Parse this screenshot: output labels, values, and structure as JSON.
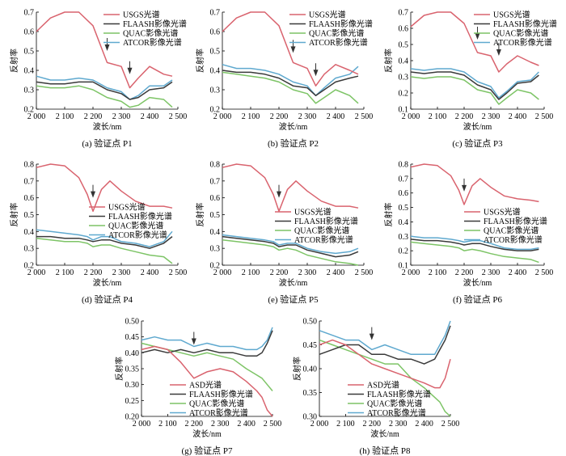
{
  "colors": {
    "reference": "#d9636e",
    "flaash": "#3a3a3a",
    "quac": "#7dc466",
    "atcor": "#5fa9cf",
    "arrow": "#333333"
  },
  "chart_data": [
    {
      "type": "line",
      "caption": "(a) 验证点 P1",
      "xlabel": "波长/nm",
      "ylabel": "反射率",
      "xlim": [
        2000,
        2500
      ],
      "ylim": [
        0.2,
        0.7
      ],
      "xticks": [
        "2 000",
        "2 100",
        "2 200",
        "2 300",
        "2 400",
        "2 500"
      ],
      "yticks": [
        "0.2",
        "0.3",
        "0.4",
        "0.5",
        "0.6",
        "0.7"
      ],
      "legend_position": "top-right",
      "arrows": [
        {
          "x": 2250,
          "y": 0.5
        },
        {
          "x": 2330,
          "y": 0.38
        }
      ],
      "x": [
        2000,
        2050,
        2100,
        2150,
        2200,
        2250,
        2300,
        2330,
        2360,
        2400,
        2450,
        2480
      ],
      "series": [
        {
          "name": "USGS光谱",
          "color_key": "reference",
          "values": [
            0.6,
            0.67,
            0.7,
            0.7,
            0.63,
            0.44,
            0.42,
            0.31,
            0.36,
            0.42,
            0.38,
            0.37
          ]
        },
        {
          "name": "FLAASH影像光谱",
          "color_key": "flaash",
          "values": [
            0.34,
            0.33,
            0.33,
            0.34,
            0.34,
            0.3,
            0.28,
            0.25,
            0.26,
            0.3,
            0.31,
            0.34
          ]
        },
        {
          "name": "QUAC影像光谱",
          "color_key": "quac",
          "values": [
            0.32,
            0.31,
            0.31,
            0.32,
            0.3,
            0.26,
            0.24,
            0.21,
            0.22,
            0.26,
            0.25,
            0.21
          ]
        },
        {
          "name": "ATCOR影像光谱",
          "color_key": "atcor",
          "values": [
            0.37,
            0.35,
            0.35,
            0.36,
            0.35,
            0.31,
            0.29,
            0.25,
            0.27,
            0.32,
            0.32,
            0.35
          ]
        }
      ]
    },
    {
      "type": "line",
      "caption": "(b) 验证点 P2",
      "xlabel": "波长/nm",
      "ylabel": "反射率",
      "xlim": [
        2000,
        2500
      ],
      "ylim": [
        0.2,
        0.7
      ],
      "xticks": [
        "2 000",
        "2 100",
        "2 200",
        "2 300",
        "2 400",
        "2 500"
      ],
      "yticks": [
        "0.2",
        "0.3",
        "0.4",
        "0.5",
        "0.6",
        "0.7"
      ],
      "legend_position": "top-right",
      "arrows": [
        {
          "x": 2250,
          "y": 0.49
        },
        {
          "x": 2330,
          "y": 0.37
        }
      ],
      "x": [
        2000,
        2050,
        2100,
        2150,
        2200,
        2250,
        2300,
        2330,
        2360,
        2400,
        2450,
        2480
      ],
      "series": [
        {
          "name": "USGS光谱",
          "color_key": "reference",
          "values": [
            0.6,
            0.67,
            0.7,
            0.7,
            0.63,
            0.44,
            0.41,
            0.32,
            0.38,
            0.43,
            0.4,
            0.38
          ]
        },
        {
          "name": "FLAASH影像光谱",
          "color_key": "flaash",
          "values": [
            0.4,
            0.39,
            0.39,
            0.38,
            0.36,
            0.32,
            0.31,
            0.27,
            0.3,
            0.34,
            0.36,
            0.37
          ]
        },
        {
          "name": "QUAC影像光谱",
          "color_key": "quac",
          "values": [
            0.39,
            0.38,
            0.37,
            0.36,
            0.34,
            0.3,
            0.28,
            0.23,
            0.26,
            0.3,
            0.27,
            0.23
          ]
        },
        {
          "name": "ATCOR影像光谱",
          "color_key": "atcor",
          "values": [
            0.43,
            0.41,
            0.41,
            0.4,
            0.38,
            0.34,
            0.32,
            0.27,
            0.31,
            0.36,
            0.38,
            0.42
          ]
        }
      ]
    },
    {
      "type": "line",
      "caption": "(c) 验证点 P3",
      "xlabel": "波长/nm",
      "ylabel": "反射率",
      "xlim": [
        2000,
        2500
      ],
      "ylim": [
        0.1,
        0.7
      ],
      "xticks": [
        "2 000",
        "2 100",
        "2 200",
        "2 300",
        "2 400",
        "2 500"
      ],
      "yticks": [
        "0.1",
        "0.2",
        "0.3",
        "0.4",
        "0.5",
        "0.6",
        "0.7"
      ],
      "legend_position": "top-right",
      "arrows": [
        {
          "x": 2250,
          "y": 0.53
        },
        {
          "x": 2330,
          "y": 0.43
        }
      ],
      "x": [
        2000,
        2050,
        2100,
        2150,
        2200,
        2250,
        2300,
        2330,
        2360,
        2400,
        2450,
        2480
      ],
      "series": [
        {
          "name": "USGS光谱",
          "color_key": "reference",
          "values": [
            0.61,
            0.68,
            0.7,
            0.7,
            0.63,
            0.45,
            0.43,
            0.33,
            0.38,
            0.43,
            0.39,
            0.37
          ]
        },
        {
          "name": "FLAASH影像光谱",
          "color_key": "flaash",
          "values": [
            0.33,
            0.32,
            0.33,
            0.33,
            0.31,
            0.25,
            0.22,
            0.16,
            0.2,
            0.26,
            0.27,
            0.31
          ]
        },
        {
          "name": "QUAC影像光谱",
          "color_key": "quac",
          "values": [
            0.3,
            0.29,
            0.3,
            0.3,
            0.28,
            0.22,
            0.2,
            0.13,
            0.17,
            0.22,
            0.2,
            0.16
          ]
        },
        {
          "name": "ATCOR影像光谱",
          "color_key": "atcor",
          "values": [
            0.35,
            0.34,
            0.35,
            0.35,
            0.33,
            0.27,
            0.24,
            0.17,
            0.21,
            0.27,
            0.28,
            0.33
          ]
        }
      ]
    },
    {
      "type": "line",
      "caption": "(d) 验证点 P4",
      "xlabel": "波长/nm",
      "ylabel": "反射率",
      "xlim": [
        2000,
        2500
      ],
      "ylim": [
        0.2,
        0.8
      ],
      "xticks": [
        "2 000",
        "2 100",
        "2 200",
        "2 300",
        "2 400",
        "2 500"
      ],
      "yticks": [
        "0.2",
        "0.3",
        "0.4",
        "0.5",
        "0.6",
        "0.7",
        "0.8"
      ],
      "legend_position": "center-right",
      "arrows": [
        {
          "x": 2200,
          "y": 0.6
        }
      ],
      "x": [
        2000,
        2050,
        2100,
        2150,
        2180,
        2200,
        2230,
        2260,
        2300,
        2350,
        2400,
        2450,
        2480
      ],
      "series": [
        {
          "name": "USGS光谱",
          "color_key": "reference",
          "values": [
            0.78,
            0.8,
            0.79,
            0.72,
            0.62,
            0.52,
            0.65,
            0.7,
            0.64,
            0.58,
            0.55,
            0.55,
            0.54
          ]
        },
        {
          "name": "FLAASH影像光谱",
          "color_key": "flaash",
          "values": [
            0.37,
            0.37,
            0.36,
            0.36,
            0.35,
            0.34,
            0.35,
            0.35,
            0.33,
            0.32,
            0.3,
            0.33,
            0.37
          ]
        },
        {
          "name": "QUAC影像光谱",
          "color_key": "quac",
          "values": [
            0.36,
            0.35,
            0.34,
            0.34,
            0.33,
            0.31,
            0.32,
            0.32,
            0.3,
            0.28,
            0.26,
            0.25,
            0.21
          ]
        },
        {
          "name": "ATCOR影像光谱",
          "color_key": "atcor",
          "values": [
            0.41,
            0.4,
            0.39,
            0.38,
            0.37,
            0.35,
            0.37,
            0.37,
            0.34,
            0.33,
            0.31,
            0.34,
            0.4
          ]
        }
      ]
    },
    {
      "type": "line",
      "caption": "(e) 验证点 P5",
      "xlabel": "波长/nm",
      "ylabel": "反射率",
      "xlim": [
        2000,
        2500
      ],
      "ylim": [
        0.2,
        0.8
      ],
      "xticks": [
        "2 000",
        "2 100",
        "2 200",
        "2 300",
        "2 400",
        "2 500"
      ],
      "yticks": [
        "0.2",
        "0.3",
        "0.4",
        "0.5",
        "0.6",
        "0.7",
        "0.8"
      ],
      "legend_position": "center-right",
      "arrows": [
        {
          "x": 2200,
          "y": 0.6
        }
      ],
      "x": [
        2000,
        2050,
        2100,
        2150,
        2180,
        2200,
        2230,
        2260,
        2300,
        2350,
        2400,
        2450,
        2480
      ],
      "series": [
        {
          "name": "USGS光谱",
          "color_key": "reference",
          "values": [
            0.78,
            0.8,
            0.79,
            0.72,
            0.62,
            0.52,
            0.65,
            0.7,
            0.64,
            0.58,
            0.55,
            0.55,
            0.54
          ]
        },
        {
          "name": "FLAASH影像光谱",
          "color_key": "flaash",
          "values": [
            0.37,
            0.36,
            0.35,
            0.34,
            0.33,
            0.31,
            0.32,
            0.32,
            0.29,
            0.27,
            0.25,
            0.26,
            0.28
          ]
        },
        {
          "name": "QUAC影像光谱",
          "color_key": "quac",
          "values": [
            0.35,
            0.34,
            0.33,
            0.32,
            0.31,
            0.29,
            0.3,
            0.29,
            0.26,
            0.24,
            0.22,
            0.21,
            0.2
          ]
        },
        {
          "name": "ATCOR影像光谱",
          "color_key": "atcor",
          "values": [
            0.38,
            0.37,
            0.36,
            0.35,
            0.34,
            0.32,
            0.33,
            0.33,
            0.3,
            0.28,
            0.27,
            0.28,
            0.3
          ]
        }
      ]
    },
    {
      "type": "line",
      "caption": "(f) 验证点 P6",
      "xlabel": "波长/nm",
      "ylabel": "反射率",
      "xlim": [
        2000,
        2500
      ],
      "ylim": [
        0.1,
        0.8
      ],
      "xticks": [
        "2 000",
        "2 100",
        "2 200",
        "2 300",
        "2 400",
        "2 500"
      ],
      "yticks": [
        "0.1",
        "0.2",
        "0.3",
        "0.4",
        "0.5",
        "0.6",
        "0.7",
        "0.8"
      ],
      "legend_position": "center-right",
      "arrows": [
        {
          "x": 2200,
          "y": 0.61
        }
      ],
      "x": [
        2000,
        2050,
        2100,
        2150,
        2180,
        2200,
        2230,
        2260,
        2300,
        2350,
        2400,
        2450,
        2480
      ],
      "series": [
        {
          "name": "USGS光谱",
          "color_key": "reference",
          "values": [
            0.78,
            0.8,
            0.79,
            0.72,
            0.62,
            0.52,
            0.65,
            0.7,
            0.64,
            0.58,
            0.56,
            0.55,
            0.54
          ]
        },
        {
          "name": "FLAASH影像光谱",
          "color_key": "flaash",
          "values": [
            0.28,
            0.27,
            0.27,
            0.26,
            0.25,
            0.24,
            0.25,
            0.25,
            0.23,
            0.21,
            0.2,
            0.2,
            0.21
          ]
        },
        {
          "name": "QUAC影像光谱",
          "color_key": "quac",
          "values": [
            0.26,
            0.25,
            0.24,
            0.23,
            0.22,
            0.2,
            0.21,
            0.2,
            0.18,
            0.16,
            0.15,
            0.14,
            0.12
          ]
        },
        {
          "name": "ATCOR影像光谱",
          "color_key": "atcor",
          "values": [
            0.3,
            0.29,
            0.29,
            0.28,
            0.27,
            0.26,
            0.27,
            0.27,
            0.25,
            0.22,
            0.21,
            0.21,
            0.22
          ]
        }
      ]
    },
    {
      "type": "line",
      "caption": "(g) 验证点 P7",
      "xlabel": "波长/nm",
      "ylabel": "反射率",
      "xlim": [
        2000,
        2500
      ],
      "ylim": [
        0.2,
        0.5
      ],
      "xticks": [
        "2 000",
        "2 100",
        "2 200",
        "2 300",
        "2 400",
        "2 500"
      ],
      "yticks": [
        "0.20",
        "0.25",
        "0.30",
        "0.35",
        "0.40",
        "0.45",
        "0.50"
      ],
      "legend_position": "bottom-center",
      "arrows": [
        {
          "x": 2200,
          "y": 0.425
        }
      ],
      "x": [
        2000,
        2050,
        2100,
        2150,
        2200,
        2250,
        2300,
        2350,
        2400,
        2440,
        2460,
        2480,
        2500
      ],
      "series": [
        {
          "name": "ASD光谱",
          "color_key": "reference",
          "values": [
            0.41,
            0.42,
            0.41,
            0.37,
            0.32,
            0.34,
            0.35,
            0.34,
            0.31,
            0.28,
            0.26,
            0.22,
            0.2
          ]
        },
        {
          "name": "FLAASH影像光谱",
          "color_key": "flaash",
          "values": [
            0.4,
            0.41,
            0.4,
            0.41,
            0.4,
            0.41,
            0.4,
            0.4,
            0.39,
            0.39,
            0.4,
            0.43,
            0.47
          ]
        },
        {
          "name": "QUAC影像光谱",
          "color_key": "quac",
          "values": [
            0.43,
            0.42,
            0.41,
            0.4,
            0.39,
            0.4,
            0.39,
            0.38,
            0.35,
            0.33,
            0.32,
            0.3,
            0.28
          ]
        },
        {
          "name": "ATCOR影像光谱",
          "color_key": "atcor",
          "values": [
            0.44,
            0.45,
            0.44,
            0.44,
            0.42,
            0.43,
            0.42,
            0.42,
            0.41,
            0.41,
            0.42,
            0.44,
            0.48
          ]
        }
      ]
    },
    {
      "type": "line",
      "caption": "(h) 验证点 P8",
      "xlabel": "波长/nm",
      "ylabel": "反射率",
      "xlim": [
        2000,
        2500
      ],
      "ylim": [
        0.3,
        0.5
      ],
      "xticks": [
        "2 000",
        "2 100",
        "2 200",
        "2 300",
        "2 400",
        "2 500"
      ],
      "yticks": [
        "0.30",
        "0.35",
        "0.40",
        "0.45",
        "0.50"
      ],
      "legend_position": "bottom-center",
      "arrows": [
        {
          "x": 2200,
          "y": 0.46
        }
      ],
      "x": [
        2000,
        2050,
        2100,
        2150,
        2200,
        2250,
        2300,
        2350,
        2400,
        2440,
        2460,
        2480,
        2500
      ],
      "series": [
        {
          "name": "ASD光谱",
          "color_key": "reference",
          "values": [
            0.45,
            0.46,
            0.45,
            0.43,
            0.41,
            0.4,
            0.39,
            0.38,
            0.37,
            0.36,
            0.36,
            0.38,
            0.42
          ]
        },
        {
          "name": "FLAASH影像光谱",
          "color_key": "flaash",
          "values": [
            0.43,
            0.44,
            0.45,
            0.45,
            0.43,
            0.43,
            0.42,
            0.42,
            0.41,
            0.42,
            0.44,
            0.46,
            0.49
          ]
        },
        {
          "name": "QUAC影像光谱",
          "color_key": "quac",
          "values": [
            0.46,
            0.45,
            0.44,
            0.43,
            0.42,
            0.41,
            0.41,
            0.38,
            0.36,
            0.34,
            0.33,
            0.31,
            0.3
          ]
        },
        {
          "name": "ATCOR影像光谱",
          "color_key": "atcor",
          "values": [
            0.48,
            0.47,
            0.46,
            0.46,
            0.44,
            0.45,
            0.44,
            0.43,
            0.43,
            0.43,
            0.45,
            0.47,
            0.5
          ]
        }
      ]
    }
  ]
}
